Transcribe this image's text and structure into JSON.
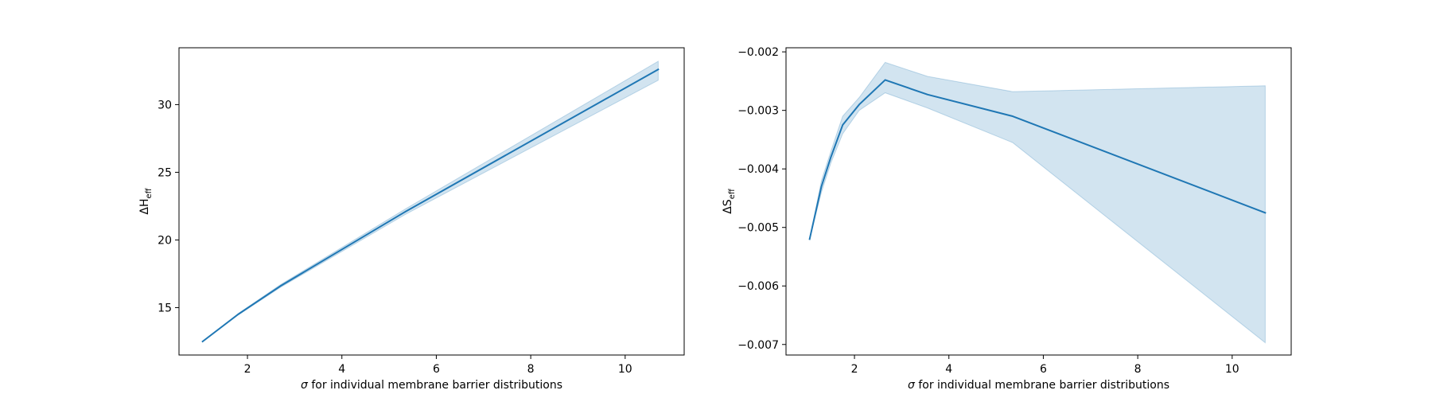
{
  "chart_data": [
    {
      "type": "line",
      "title": "",
      "xlabel_symbol": "σ",
      "xlabel_text": " for individual membrane barrier distributions",
      "ylabel_main": "ΔH",
      "ylabel_sub": "eff",
      "xlim": [
        0.55,
        11.25
      ],
      "ylim": [
        11.5,
        34.2
      ],
      "xticks": [
        2,
        4,
        6,
        8,
        10
      ],
      "yticks": [
        15,
        20,
        25,
        30
      ],
      "xtick_labels": [
        "2",
        "4",
        "6",
        "8",
        "10"
      ],
      "ytick_labels": [
        "15",
        "20",
        "25",
        "30"
      ],
      "series": [
        {
          "color": "#1f77b4",
          "band_color": "#1f77b4",
          "points": [
            {
              "x": 1.05,
              "y": 12.5,
              "lo": 12.5,
              "hi": 12.5
            },
            {
              "x": 1.8,
              "y": 14.5,
              "lo": 14.45,
              "hi": 14.55
            },
            {
              "x": 2.7,
              "y": 16.6,
              "lo": 16.5,
              "hi": 16.7
            },
            {
              "x": 5.35,
              "y": 22.1,
              "lo": 21.9,
              "hi": 22.3
            },
            {
              "x": 10.7,
              "y": 32.6,
              "lo": 31.8,
              "hi": 33.2
            }
          ]
        }
      ]
    },
    {
      "type": "line",
      "title": "",
      "xlabel_symbol": "σ",
      "xlabel_text": " for individual membrane barrier distributions",
      "ylabel_main": "ΔS",
      "ylabel_sub": "eff",
      "xlim": [
        0.55,
        11.25
      ],
      "ylim": [
        -0.00718,
        -0.00193
      ],
      "xticks": [
        2,
        4,
        6,
        8,
        10
      ],
      "yticks": [
        -0.002,
        -0.003,
        -0.004,
        -0.005,
        -0.006,
        -0.007
      ],
      "xtick_labels": [
        "2",
        "4",
        "6",
        "8",
        "10"
      ],
      "ytick_labels": [
        "−0.002",
        "−0.003",
        "−0.004",
        "−0.005",
        "−0.006",
        "−0.007"
      ],
      "series": [
        {
          "color": "#1f77b4",
          "band_color": "#1f77b4",
          "points": [
            {
              "x": 1.05,
              "y": -0.0052,
              "lo": -0.0052,
              "hi": -0.0052
            },
            {
              "x": 1.3,
              "y": -0.0043,
              "lo": -0.0044,
              "hi": -0.0042
            },
            {
              "x": 1.5,
              "y": -0.0038,
              "lo": -0.0039,
              "hi": -0.0037
            },
            {
              "x": 1.75,
              "y": -0.00325,
              "lo": -0.0034,
              "hi": -0.0031
            },
            {
              "x": 2.1,
              "y": -0.0029,
              "lo": -0.003,
              "hi": -0.00278
            },
            {
              "x": 2.65,
              "y": -0.00248,
              "lo": -0.0027,
              "hi": -0.00218
            },
            {
              "x": 3.55,
              "y": -0.00273,
              "lo": -0.00296,
              "hi": -0.00242
            },
            {
              "x": 5.35,
              "y": -0.0031,
              "lo": -0.00355,
              "hi": -0.00268
            },
            {
              "x": 10.7,
              "y": -0.00475,
              "lo": -0.00697,
              "hi": -0.00258
            }
          ]
        }
      ]
    }
  ]
}
